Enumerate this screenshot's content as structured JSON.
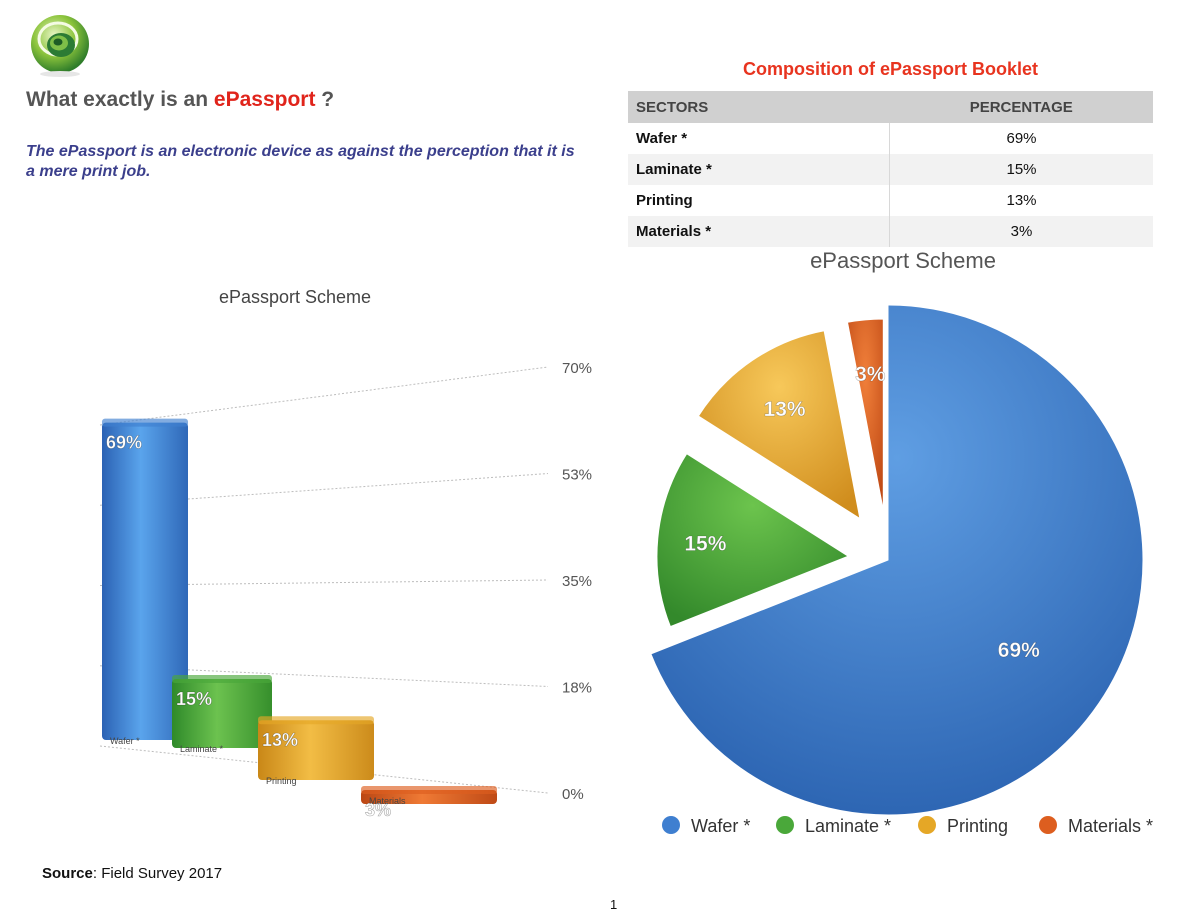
{
  "header": {
    "question_prefix": "What exactly is an ",
    "brand": "ePassport",
    "question_suffix": " ?",
    "subtitle": "The ePassport is an electronic device as against the perception that it is a mere print job."
  },
  "table": {
    "title": "Composition of ePassport Booklet",
    "columns": [
      "SECTORS",
      "PERCENTAGE"
    ],
    "rows": [
      {
        "sector": "Wafer *",
        "percentage": "69%"
      },
      {
        "sector": "Laminate *",
        "percentage": "15%"
      },
      {
        "sector": "Printing",
        "percentage": "13%"
      },
      {
        "sector": "Materials *",
        "percentage": "3%"
      }
    ]
  },
  "colors": {
    "wafer": "#3f7fd0",
    "laminate": "#4aa83a",
    "printing": "#e5a726",
    "materials": "#dd5e1f",
    "headline_accent": "#e0241b",
    "subtitle": "#3b3f8c",
    "table_title": "#e8341f"
  },
  "chart_data": [
    {
      "type": "bar",
      "title": "ePassport Scheme",
      "categories": [
        "Wafer *",
        "Laminate *",
        "Printing",
        "Materials"
      ],
      "values": [
        69,
        15,
        13,
        3
      ],
      "data_labels": [
        "69%",
        "15%",
        "13%",
        "3%"
      ],
      "yticks": [
        "0%",
        "18%",
        "35%",
        "53%",
        "70%"
      ],
      "ylim": [
        0,
        70
      ],
      "xlabel": "",
      "ylabel": "",
      "grid": true
    },
    {
      "type": "pie",
      "title": "ePassport Scheme",
      "labels": [
        "Wafer *",
        "Laminate *",
        "Printing",
        "Materials *"
      ],
      "values": [
        69,
        15,
        13,
        3
      ],
      "data_labels": [
        "69%",
        "15%",
        "13%",
        "3%"
      ],
      "legend": "bottom"
    }
  ],
  "footer": {
    "source_label": "Source",
    "source_text": ": Field Survey 2017",
    "page_number": "1"
  }
}
